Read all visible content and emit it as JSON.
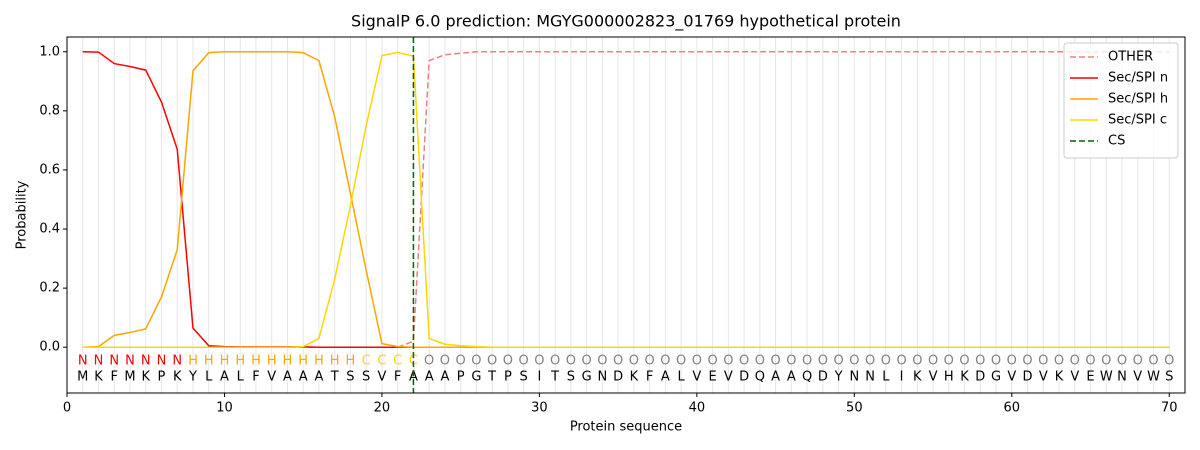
{
  "chart_data": {
    "type": "line",
    "title": "SignalP 6.0 prediction: MGYG000002823_01769 hypothetical protein",
    "xlabel": "Protein sequence",
    "ylabel": "Probability",
    "x": [
      1,
      2,
      3,
      4,
      5,
      6,
      7,
      8,
      9,
      10,
      11,
      12,
      13,
      14,
      15,
      16,
      17,
      18,
      19,
      20,
      21,
      22,
      23,
      24,
      25,
      26,
      27,
      28,
      29,
      30,
      31,
      32,
      33,
      34,
      35,
      36,
      37,
      38,
      39,
      40,
      41,
      42,
      43,
      44,
      45,
      46,
      47,
      48,
      49,
      50,
      51,
      52,
      53,
      54,
      55,
      56,
      57,
      58,
      59,
      60,
      61,
      62,
      63,
      64,
      65,
      66,
      67,
      68,
      69,
      70
    ],
    "residues": [
      "M",
      "K",
      "F",
      "M",
      "K",
      "P",
      "K",
      "Y",
      "L",
      "A",
      "L",
      "F",
      "V",
      "A",
      "A",
      "A",
      "T",
      "S",
      "S",
      "V",
      "F",
      "A",
      "A",
      "A",
      "P",
      "G",
      "T",
      "P",
      "S",
      "I",
      "T",
      "S",
      "G",
      "N",
      "D",
      "K",
      "F",
      "A",
      "L",
      "V",
      "E",
      "V",
      "D",
      "Q",
      "A",
      "A",
      "Q",
      "D",
      "Y",
      "N",
      "N",
      "L",
      "I",
      "K",
      "V",
      "H",
      "K",
      "D",
      "G",
      "V",
      "D",
      "V",
      "K",
      "V",
      "E",
      "W",
      "N",
      "V",
      "W",
      "S"
    ],
    "labels": [
      "N",
      "N",
      "N",
      "N",
      "N",
      "N",
      "N",
      "H",
      "H",
      "H",
      "H",
      "H",
      "H",
      "H",
      "H",
      "H",
      "H",
      "H",
      "C",
      "C",
      "C",
      "C",
      "O",
      "O",
      "O",
      "O",
      "O",
      "O",
      "O",
      "O",
      "O",
      "O",
      "O",
      "O",
      "O",
      "O",
      "O",
      "O",
      "O",
      "O",
      "O",
      "O",
      "O",
      "O",
      "O",
      "O",
      "O",
      "O",
      "O",
      "O",
      "O",
      "O",
      "O",
      "O",
      "O",
      "O",
      "O",
      "O",
      "O",
      "O",
      "O",
      "O",
      "O",
      "O",
      "O",
      "O",
      "O",
      "O",
      "O",
      "O"
    ],
    "label_colors": {
      "N": "#ff0000",
      "H": "#ffa500",
      "C": "#ffd700",
      "O": "#808080"
    },
    "series": [
      {
        "name": "OTHER",
        "color": "#f08080",
        "dashed": true,
        "values": [
          0,
          0,
          0,
          0,
          0,
          0,
          0,
          0,
          0,
          0,
          0,
          0,
          0,
          0,
          0,
          0,
          0,
          0,
          0,
          0,
          0,
          0.02,
          0.97,
          0.99,
          0.995,
          1,
          1,
          1,
          1,
          1,
          1,
          1,
          1,
          1,
          1,
          1,
          1,
          1,
          1,
          1,
          1,
          1,
          1,
          1,
          1,
          1,
          1,
          1,
          1,
          1,
          1,
          1,
          1,
          1,
          1,
          1,
          1,
          1,
          1,
          1,
          1,
          1,
          1,
          1,
          1,
          1,
          1,
          1,
          1,
          1
        ]
      },
      {
        "name": "Sec/SPI n",
        "color": "#ff0000",
        "dashed": false,
        "values": [
          1,
          0.999,
          0.96,
          0.95,
          0.938,
          0.83,
          0.67,
          0.065,
          0.005,
          0.002,
          0.001,
          0.001,
          0.001,
          0.001,
          0.001,
          0,
          0,
          0,
          0,
          0,
          0,
          0,
          0,
          0,
          0,
          0,
          0,
          0,
          0,
          0,
          0,
          0,
          0,
          0,
          0,
          0,
          0,
          0,
          0,
          0,
          0,
          0,
          0,
          0,
          0,
          0,
          0,
          0,
          0,
          0,
          0,
          0,
          0,
          0,
          0,
          0,
          0,
          0,
          0,
          0,
          0,
          0,
          0,
          0,
          0,
          0,
          0,
          0,
          0,
          0
        ]
      },
      {
        "name": "Sec/SPI h",
        "color": "#ffa500",
        "dashed": false,
        "values": [
          0,
          0.002,
          0.04,
          0.05,
          0.062,
          0.17,
          0.33,
          0.935,
          0.997,
          1,
          1,
          1,
          1,
          1,
          0.997,
          0.97,
          0.78,
          0.52,
          0.26,
          0.012,
          0.002,
          0,
          0,
          0,
          0,
          0,
          0,
          0,
          0,
          0,
          0,
          0,
          0,
          0,
          0,
          0,
          0,
          0,
          0,
          0,
          0,
          0,
          0,
          0,
          0,
          0,
          0,
          0,
          0,
          0,
          0,
          0,
          0,
          0,
          0,
          0,
          0,
          0,
          0,
          0,
          0,
          0,
          0,
          0,
          0,
          0,
          0,
          0,
          0,
          0
        ]
      },
      {
        "name": "Sec/SPI c",
        "color": "#ffd700",
        "dashed": false,
        "values": [
          0,
          0,
          0,
          0,
          0,
          0,
          0,
          0,
          0,
          0,
          0,
          0,
          0,
          0,
          0.002,
          0.03,
          0.23,
          0.48,
          0.75,
          0.987,
          0.998,
          0.985,
          0.03,
          0.01,
          0.005,
          0.002,
          0,
          0,
          0,
          0,
          0,
          0,
          0,
          0,
          0,
          0,
          0,
          0,
          0,
          0,
          0,
          0,
          0,
          0,
          0,
          0,
          0,
          0,
          0,
          0,
          0,
          0,
          0,
          0,
          0,
          0,
          0,
          0,
          0,
          0,
          0,
          0,
          0,
          0,
          0,
          0,
          0,
          0,
          0,
          0
        ]
      }
    ],
    "cs": {
      "name": "CS",
      "x": 22,
      "color": "#006400"
    },
    "xlim": [
      0,
      71
    ],
    "ylim": [
      -0.155,
      1.05
    ],
    "xticks": [
      0,
      10,
      20,
      30,
      40,
      50,
      60,
      70
    ],
    "yticks": [
      {
        "value": 0,
        "label": "0.0"
      },
      {
        "value": 0.2,
        "label": "0.2"
      },
      {
        "value": 0.4,
        "label": "0.4"
      },
      {
        "value": 0.6,
        "label": "0.6"
      },
      {
        "value": 0.8,
        "label": "0.8"
      },
      {
        "value": 1,
        "label": "1.0"
      }
    ],
    "legend": "upper right",
    "grid": true
  }
}
